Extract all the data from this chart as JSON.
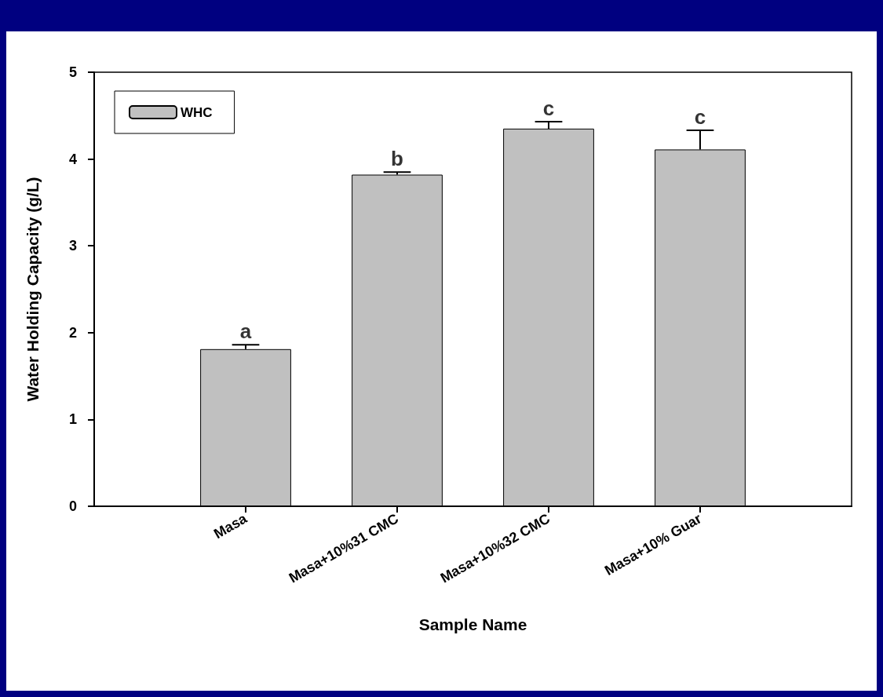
{
  "chart_data": {
    "type": "bar",
    "xlabel": "Sample Name",
    "ylabel": "Water Holding Capacity (g/L)",
    "categories": [
      "Masa",
      "Masa+10%31 CMC",
      "Masa+10%32 CMC",
      "Masa+10% Guar"
    ],
    "series": [
      {
        "name": "WHC",
        "color": "#c0c0c0",
        "values": [
          1.81,
          3.82,
          4.35,
          4.11
        ],
        "errors": [
          [
            1.81,
            1.86
          ],
          [
            3.82,
            3.85
          ],
          [
            4.35,
            4.43
          ],
          [
            4.11,
            4.33
          ]
        ]
      }
    ],
    "ylim": [
      0,
      5
    ],
    "yticks": [
      0,
      1,
      2,
      3,
      4,
      5
    ],
    "annotations": [
      {
        "text": "a",
        "x": "Masa",
        "y": 1.86
      },
      {
        "text": "b",
        "x": "Masa+10%31 CMC",
        "y": 3.85
      },
      {
        "text": "c",
        "x": "Masa+10%32 CMC",
        "y": 4.43
      },
      {
        "text": "c",
        "x": "Masa+10% Guar",
        "y": 4.33
      }
    ],
    "legend": "top left",
    "grid": false
  }
}
